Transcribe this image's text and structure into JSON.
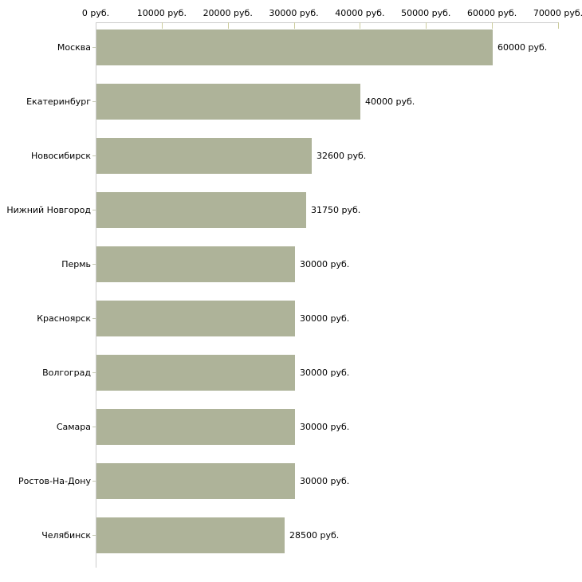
{
  "chart_data": {
    "type": "bar",
    "orientation": "horizontal",
    "title": "",
    "xlabel": "",
    "ylabel": "",
    "categories": [
      "Москва",
      "Екатеринбург",
      "Новосибирск",
      "Нижний Новгород",
      "Пермь",
      "Красноярск",
      "Волгоград",
      "Самара",
      "Ростов-На-Дону",
      "Челябинск"
    ],
    "values": [
      60000,
      40000,
      32600,
      31750,
      30000,
      30000,
      30000,
      30000,
      30000,
      28500
    ],
    "value_labels": [
      "60000 руб.",
      "40000 руб.",
      "32600 руб.",
      "31750 руб.",
      "30000 руб.",
      "30000 руб.",
      "30000 руб.",
      "30000 руб.",
      "30000 руб.",
      "28500 руб."
    ],
    "x_axis": {
      "position": "top",
      "min": 0,
      "max": 70000,
      "ticks": [
        0,
        10000,
        20000,
        30000,
        40000,
        50000,
        60000,
        70000
      ],
      "tick_labels": [
        "0 руб.",
        "10000 руб.",
        "20000 руб.",
        "30000 руб.",
        "40000 руб.",
        "50000 руб.",
        "60000 руб.",
        "70000 руб."
      ]
    },
    "legend": null,
    "grid": false,
    "colors": {
      "bar_fill": "#aeb399",
      "axis_line": "#cccccc",
      "tick_mark": "#cbcb9c",
      "text": "#000000",
      "background": "#ffffff"
    }
  }
}
